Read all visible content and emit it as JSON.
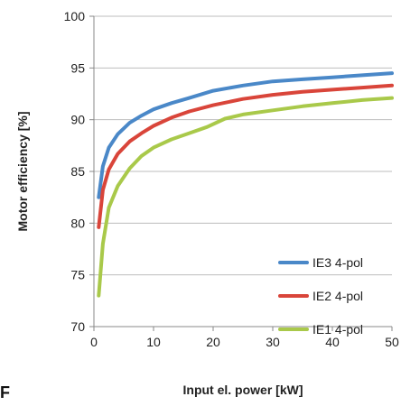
{
  "chart_data": {
    "type": "line",
    "title": "",
    "xlabel": "Input el. power [kW]",
    "ylabel": "Motor efficiency [%]",
    "xlim": [
      0,
      50
    ],
    "ylim": [
      70,
      100
    ],
    "xticks": [
      0,
      10,
      20,
      30,
      40,
      50
    ],
    "yticks": [
      70,
      75,
      80,
      85,
      90,
      95,
      100
    ],
    "grid": "horizontal",
    "legend_position": "bottom-right",
    "series": [
      {
        "name": "IE3 4-pol",
        "color": "#4a88c8",
        "x": [
          0.8,
          1.5,
          2.5,
          4,
          6,
          8,
          10,
          13,
          16,
          20,
          25,
          30,
          35,
          40,
          45,
          50
        ],
        "y": [
          82.5,
          85.5,
          87.3,
          88.6,
          89.7,
          90.4,
          91.0,
          91.6,
          92.1,
          92.8,
          93.3,
          93.7,
          93.9,
          94.1,
          94.3,
          94.5
        ]
      },
      {
        "name": "IE2 4-pol",
        "color": "#d9453a",
        "x": [
          0.8,
          1.5,
          2.5,
          4,
          6,
          8,
          10,
          13,
          16,
          20,
          25,
          30,
          35,
          40,
          45,
          50
        ],
        "y": [
          79.6,
          83.2,
          85.2,
          86.7,
          87.9,
          88.7,
          89.4,
          90.2,
          90.8,
          91.4,
          92.0,
          92.4,
          92.7,
          92.9,
          93.1,
          93.3
        ]
      },
      {
        "name": "IE1 4-pol",
        "color": "#a9c94a",
        "x": [
          0.8,
          1.5,
          2.5,
          4,
          6,
          8,
          10,
          13,
          16,
          19,
          22,
          25,
          30,
          35,
          40,
          45,
          50
        ],
        "y": [
          73.0,
          78.0,
          81.5,
          83.6,
          85.3,
          86.5,
          87.3,
          88.1,
          88.7,
          89.3,
          90.1,
          90.5,
          90.9,
          91.3,
          91.6,
          91.9,
          92.1
        ]
      }
    ]
  },
  "figure_label": "F"
}
